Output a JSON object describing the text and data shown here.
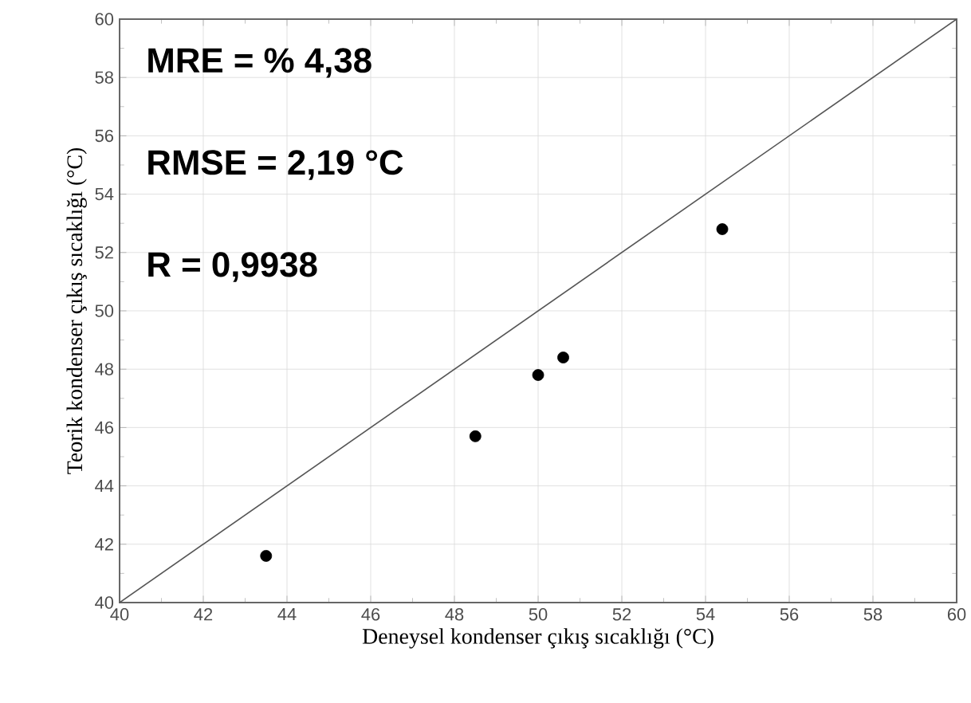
{
  "chart_data": {
    "type": "scatter",
    "xlabel": "Deneysel kondenser çıkış sıcaklığı (°C)",
    "ylabel": "Teorik kondenser çıkış sıcaklığı (°C)",
    "annotations": [
      "MRE = % 4,38",
      "RMSE = 2,19 °C",
      "R = 0,9938"
    ],
    "series": [
      {
        "color": "#000000",
        "x": [
          43.5,
          48.5,
          50,
          50.6,
          54.4
        ],
        "values": [
          41.6,
          45.7,
          47.8,
          48.4,
          52.8
        ],
        "marker": "circle"
      },
      {
        "type": "line",
        "color": "#555555",
        "x": [
          40,
          60
        ],
        "values": [
          40,
          60
        ],
        "marker": "none",
        "line_style": "solid"
      }
    ],
    "xlim": [
      40,
      60
    ],
    "ylim": [
      40,
      60
    ],
    "xticks": [
      40,
      42,
      44,
      46,
      48,
      50,
      52,
      54,
      56,
      58,
      60
    ],
    "yticks": [
      40,
      42,
      44,
      46,
      48,
      50,
      52,
      54,
      56,
      58,
      60
    ],
    "grid": true
  }
}
